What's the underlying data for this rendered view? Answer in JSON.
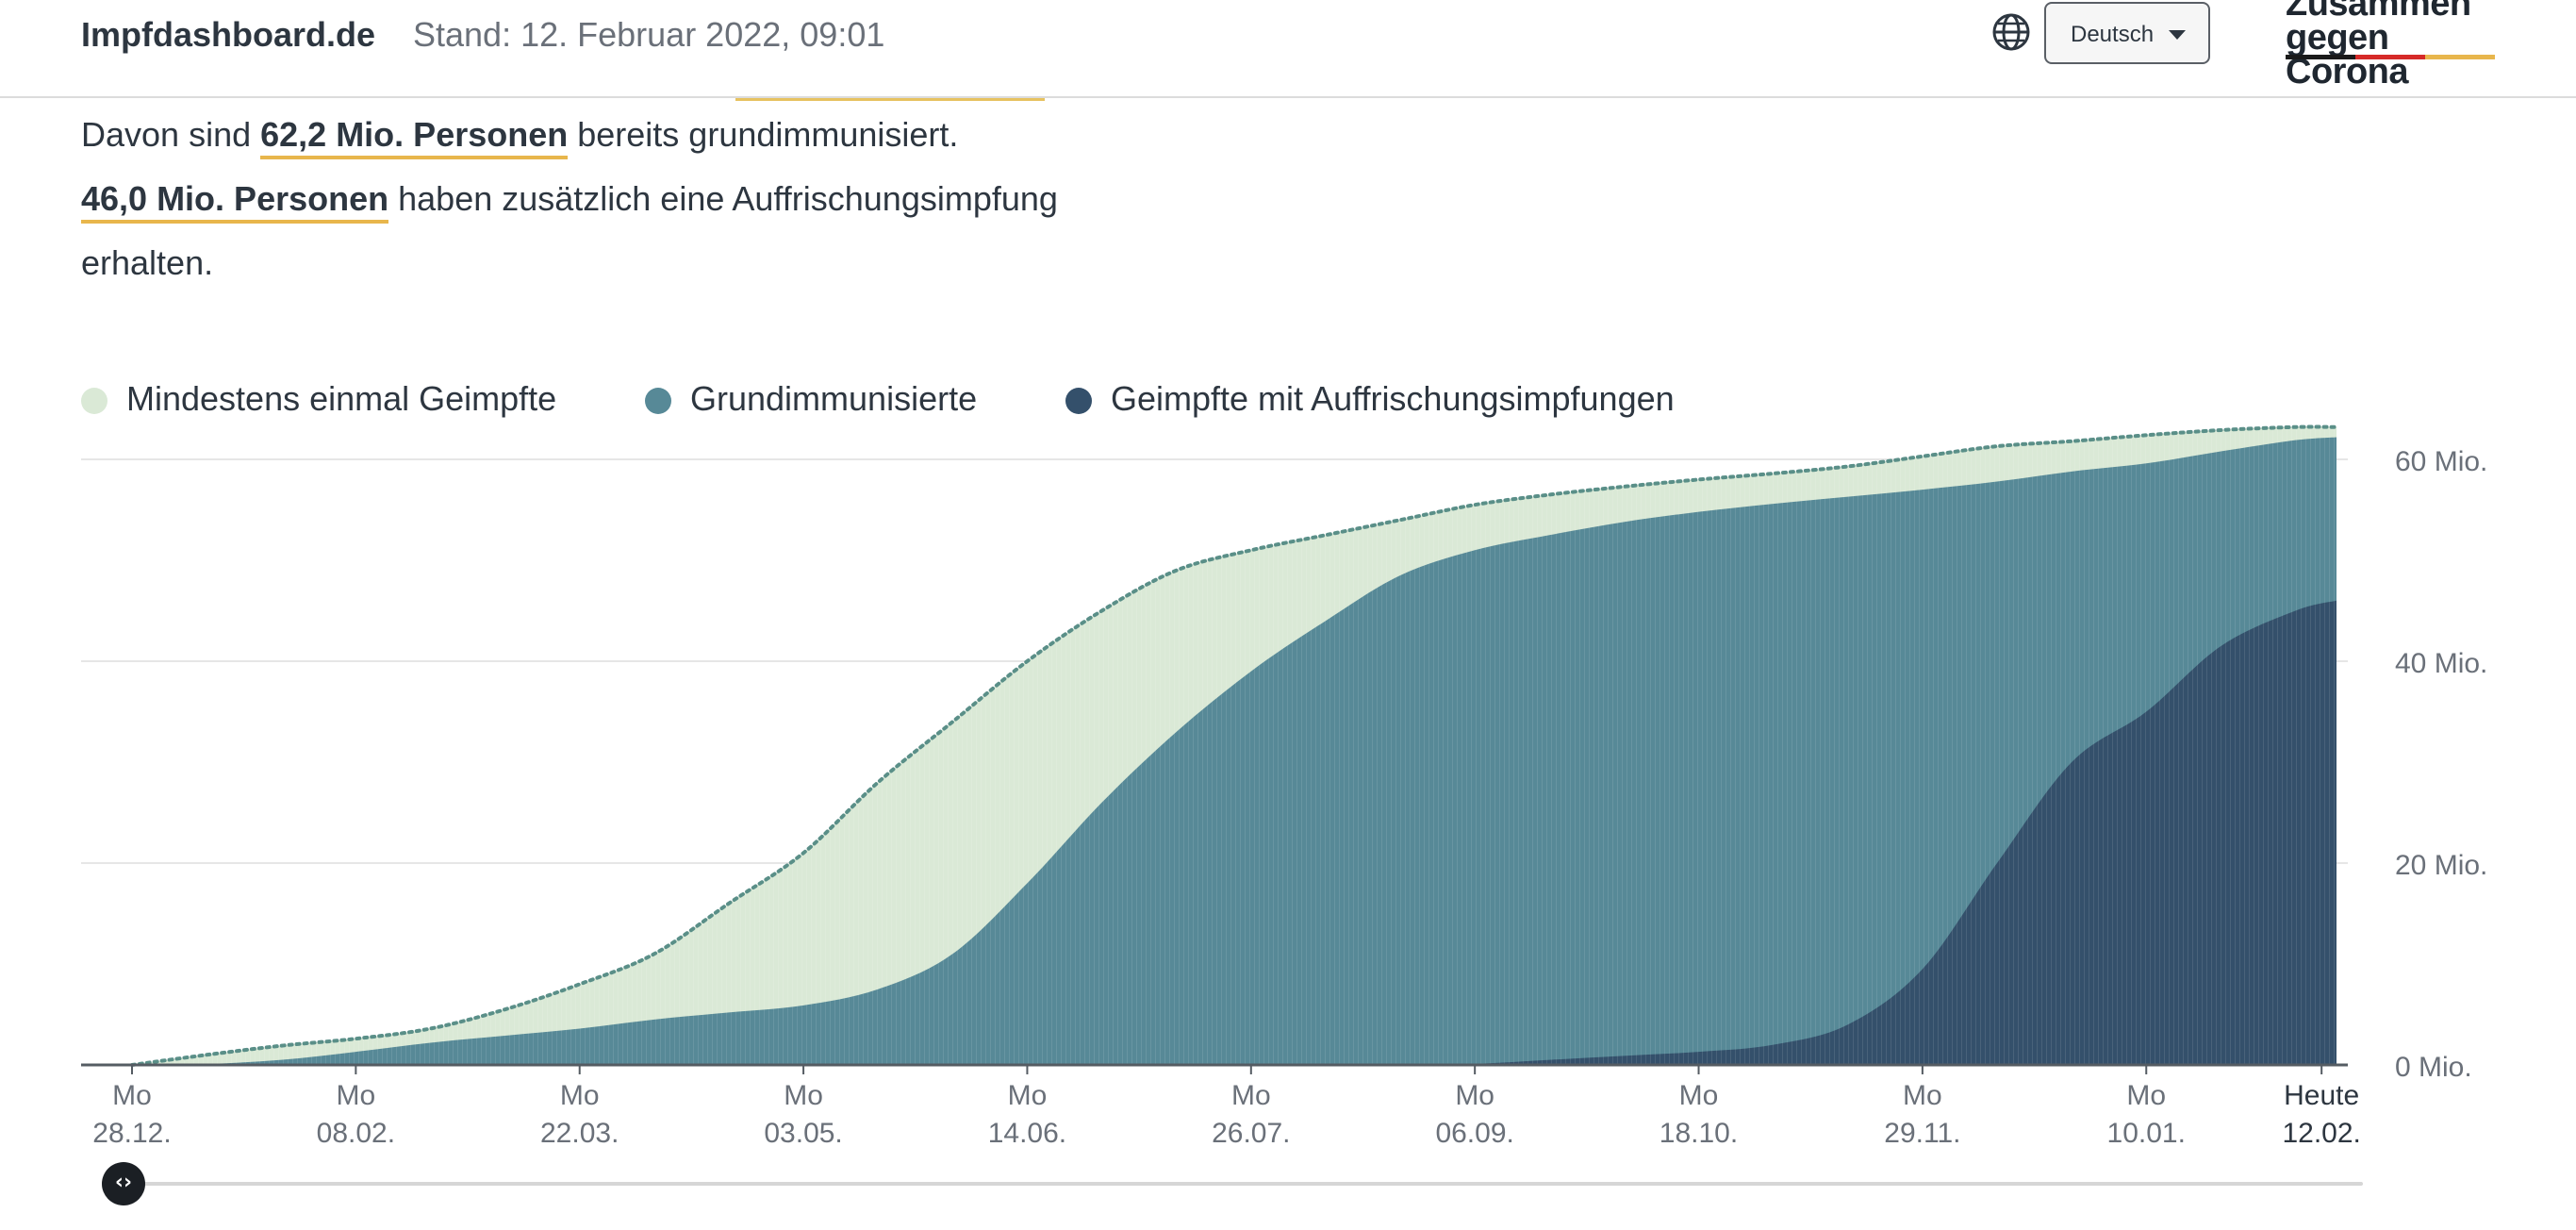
{
  "header": {
    "site_name": "Impfdashboard.de",
    "stand": "Stand: 12. Februar 2022, 09:01",
    "language": "Deutsch",
    "language_icon": "globe-icon",
    "logo_line1": "Zusammen",
    "logo_line2": "gegen Corona",
    "logo_colors": [
      "#1a1a1a",
      "#d62a28",
      "#e8b64c"
    ]
  },
  "summary": {
    "line1_prefix": "Davon sind",
    "line1_value": "62,2 Mio. Personen",
    "line1_suffix": "bereits grundimmunisiert.",
    "line2_value": "46,0 Mio. Personen",
    "line2_suffix": "haben zusätzlich eine Auffrischungsimpfung",
    "line3": "erhalten."
  },
  "colors": {
    "first_dose": "#dae9d6",
    "full": "#578997",
    "booster": "#34506b",
    "dotted_line": "#5a8f88",
    "highlight": "#e8b64c"
  },
  "chart_data": {
    "type": "area",
    "x_tick_labels": [
      {
        "top": "Mo",
        "bottom": "28.12."
      },
      {
        "top": "Mo",
        "bottom": "08.02."
      },
      {
        "top": "Mo",
        "bottom": "22.03."
      },
      {
        "top": "Mo",
        "bottom": "03.05."
      },
      {
        "top": "Mo",
        "bottom": "14.06."
      },
      {
        "top": "Mo",
        "bottom": "26.07."
      },
      {
        "top": "Mo",
        "bottom": "06.09."
      },
      {
        "top": "Mo",
        "bottom": "18.10."
      },
      {
        "top": "Mo",
        "bottom": "29.11."
      },
      {
        "top": "Mo",
        "bottom": "10.01."
      },
      {
        "top": "Heute",
        "bottom": "12.02."
      }
    ],
    "x_tick_weeks": [
      0,
      6,
      12,
      18,
      24,
      30,
      36,
      42,
      48,
      54,
      58.7
    ],
    "x_max_weeks": 59.1,
    "y_ticks": [
      0,
      20,
      40,
      60
    ],
    "y_tick_labels": [
      "0 Mio.",
      "20 Mio.",
      "40 Mio.",
      "60 Mio."
    ],
    "ylim": [
      0,
      60
    ],
    "y_unit": "Mio.",
    "series": [
      {
        "name": "Mindestens einmal Geimpfte",
        "x_weeks": [
          0,
          2,
          4,
          6,
          8,
          10,
          12,
          14,
          16,
          18,
          20,
          22,
          24,
          26,
          28,
          30,
          32,
          34,
          36,
          38,
          40,
          42,
          44,
          46,
          48,
          50,
          52,
          54,
          56,
          58,
          59.1
        ],
        "values": [
          0,
          1,
          1.9,
          2.6,
          3.6,
          5.5,
          8,
          11,
          16,
          21,
          28,
          34,
          40,
          45,
          49,
          51,
          52.5,
          54,
          55.5,
          56.5,
          57.3,
          58,
          58.6,
          59.3,
          60.3,
          61.3,
          61.8,
          62.4,
          62.9,
          63.2,
          63.2
        ]
      },
      {
        "name": "Grundimmunisierte",
        "x_weeks": [
          0,
          2,
          4,
          6,
          8,
          10,
          12,
          14,
          16,
          18,
          20,
          22,
          24,
          26,
          28,
          30,
          32,
          34,
          36,
          38,
          40,
          42,
          44,
          46,
          48,
          50,
          52,
          54,
          56,
          58,
          59.1
        ],
        "values": [
          0,
          0.1,
          0.5,
          1.3,
          2.2,
          2.9,
          3.6,
          4.5,
          5.2,
          5.9,
          7.5,
          11,
          18,
          26,
          33,
          39,
          44,
          48.5,
          51,
          52.5,
          53.8,
          54.8,
          55.6,
          56.3,
          57,
          57.8,
          58.8,
          59.6,
          60.8,
          61.9,
          62.2
        ]
      },
      {
        "name": "Geimpfte mit Auffrischungsimpfungen",
        "x_weeks": [
          0,
          2,
          4,
          6,
          8,
          10,
          12,
          14,
          16,
          18,
          20,
          22,
          24,
          26,
          28,
          30,
          32,
          34,
          36,
          38,
          40,
          42,
          44,
          46,
          48,
          50,
          52,
          54,
          56,
          58,
          59.1
        ],
        "values": [
          0,
          0,
          0,
          0,
          0,
          0,
          0,
          0,
          0,
          0,
          0,
          0,
          0,
          0,
          0,
          0,
          0,
          0,
          0.1,
          0.5,
          0.9,
          1.3,
          2,
          4,
          9.5,
          20,
          30,
          35,
          41.5,
          45,
          46
        ]
      }
    ]
  }
}
